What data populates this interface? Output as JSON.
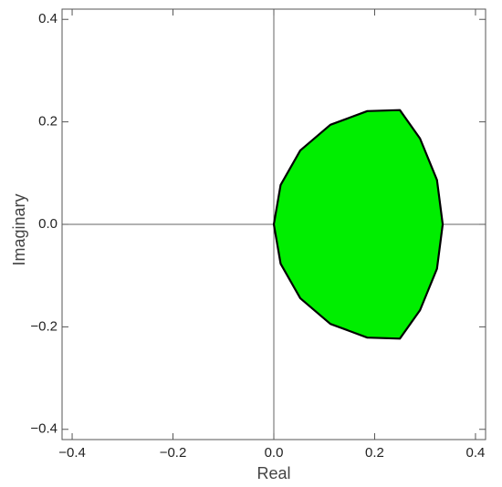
{
  "chart_data": {
    "type": "region",
    "x_label": "Real",
    "y_label": "Imaginary",
    "xlim": [
      -0.42,
      0.42
    ],
    "ylim": [
      -0.42,
      0.42
    ],
    "xticks": [
      {
        "value": -0.4,
        "label": "−0.4"
      },
      {
        "value": -0.2,
        "label": "−0.2"
      },
      {
        "value": 0,
        "label": "0.0"
      },
      0.2,
      0.4
    ],
    "yticks": [
      {
        "value": -0.4,
        "label": "−0.4"
      },
      {
        "value": -0.2,
        "label": "−0.2"
      },
      {
        "value": 0,
        "label": "0.0"
      },
      0.2,
      0.4
    ],
    "axes_at_origin": true,
    "series": [
      {
        "color": "#00ee00",
        "edge_color": "#000000",
        "x": [
          0,
          0.0135,
          0.0525,
          0.1122,
          0.1854,
          0.25,
          0.29,
          0.3236,
          0.335,
          0.3236,
          0.29,
          0.25,
          0.1854,
          0.1122,
          0.0525,
          0.0135
        ],
        "y": [
          0,
          0.0768,
          0.1442,
          0.1943,
          0.221,
          0.223,
          0.1675,
          0.0867,
          0,
          -0.0867,
          -0.1675,
          -0.223,
          -0.221,
          -0.1943,
          -0.1442,
          -0.0768
        ]
      }
    ]
  }
}
